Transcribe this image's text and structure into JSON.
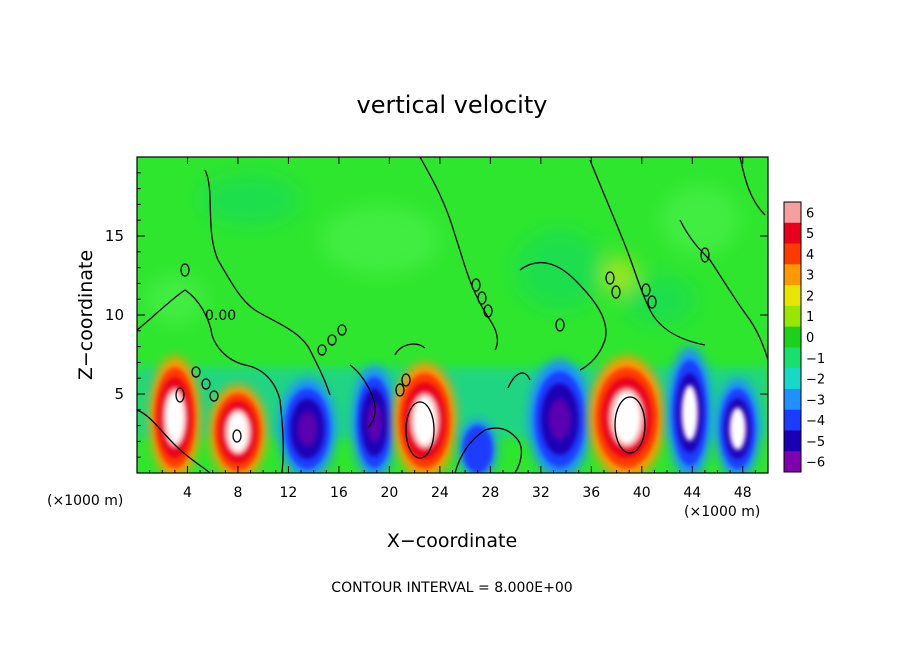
{
  "chart_data": {
    "type": "heatmap",
    "title": "vertical velocity",
    "xlabel": "X−coordinate",
    "ylabel": "Z−coordinate",
    "x_unit_left": "(×1000 m)",
    "x_unit_right": "(×1000 m)",
    "footer": "CONTOUR INTERVAL = 8.000E+00",
    "contour_label": "0.00",
    "xlim": [
      0,
      50
    ],
    "ylim": [
      0,
      20
    ],
    "x_ticks": [
      4,
      8,
      12,
      16,
      20,
      24,
      28,
      32,
      36,
      40,
      44,
      48
    ],
    "y_ticks": [
      5,
      10,
      15
    ],
    "colorbar": {
      "levels": [
        6,
        5,
        4,
        3,
        2,
        1,
        0,
        -1,
        -2,
        -3,
        -4,
        -5,
        -6
      ],
      "labels": [
        "6",
        "5",
        "4",
        "3",
        "2",
        "1",
        "0",
        "−1",
        "−2",
        "−3",
        "−4",
        "−5",
        "−6"
      ],
      "colors": [
        "#f4a0a0",
        "#e8001c",
        "#ff3a00",
        "#ff9900",
        "#e6e600",
        "#99e600",
        "#19d219",
        "#18e06a",
        "#18d8c8",
        "#1e90ff",
        "#1a3cff",
        "#1a00b4",
        "#8000b0"
      ]
    },
    "background_color": "#2ee62e",
    "cells": [
      {
        "x": 3.0,
        "z": 3.5,
        "w": 4.0,
        "value": 5,
        "white_core": true
      },
      {
        "x": 8.0,
        "z": 2.6,
        "w": 4.5,
        "value": 5,
        "white_core": true
      },
      {
        "x": 13.5,
        "z": 2.8,
        "w": 4.5,
        "value": -5,
        "white_core": false
      },
      {
        "x": 18.8,
        "z": 3.2,
        "w": 3.5,
        "value": -5,
        "white_core": false
      },
      {
        "x": 22.8,
        "z": 3.3,
        "w": 5.0,
        "value": 6,
        "white_core": true
      },
      {
        "x": 27.0,
        "z": 1.5,
        "w": 3.0,
        "value": -3,
        "white_core": false
      },
      {
        "x": 33.5,
        "z": 3.4,
        "w": 5.0,
        "value": -5,
        "white_core": false
      },
      {
        "x": 38.8,
        "z": 3.5,
        "w": 6.0,
        "value": 6,
        "white_core": true
      },
      {
        "x": 43.8,
        "z": 3.8,
        "w": 3.5,
        "value": -5,
        "white_core": true
      },
      {
        "x": 47.6,
        "z": 2.8,
        "w": 3.5,
        "value": -5,
        "white_core": true
      }
    ]
  }
}
